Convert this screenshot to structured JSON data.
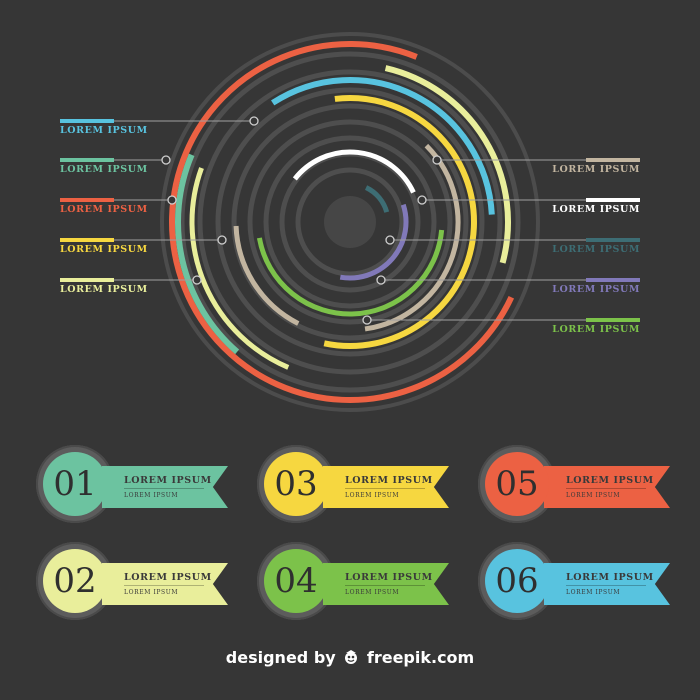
{
  "colors": {
    "background": "#363636",
    "teal": "#6cc3a0",
    "red": "#ec6143",
    "yellow": "#f6d740",
    "pale_yellow": "#e9ee9b",
    "green": "#7cc24a",
    "blue": "#58c3df",
    "beige": "#c2b5a0",
    "white": "#ffffff",
    "dark_teal": "#3d6d74",
    "purple": "#8179b9",
    "guide": "#a0a0a0"
  },
  "left_labels": [
    {
      "text": "LOREM IPSUM",
      "color": "#58c3df"
    },
    {
      "text": "LOREM IPSUM",
      "color": "#6cc3a0"
    },
    {
      "text": "LOREM IPSUM",
      "color": "#ec6143"
    },
    {
      "text": "LOREM IPSUM",
      "color": "#f6d740"
    },
    {
      "text": "LOREM IPSUM",
      "color": "#e9ee9b"
    }
  ],
  "right_labels": [
    {
      "text": "LOREM IPSUM",
      "color": "#c2b5a0"
    },
    {
      "text": "LOREM IPSUM",
      "color": "#ffffff"
    },
    {
      "text": "LOREM IPSUM",
      "color": "#3d6d74"
    },
    {
      "text": "LOREM IPSUM",
      "color": "#8179b9"
    },
    {
      "text": "LOREM IPSUM",
      "color": "#7cc24a"
    }
  ],
  "badges": [
    {
      "number": "01",
      "title": "LOREM IPSUM",
      "subtitle": "LOREM IPSUM",
      "color": "#6cc3a0"
    },
    {
      "number": "02",
      "title": "LOREM IPSUM",
      "subtitle": "LOREM IPSUM",
      "color": "#e9ee9b"
    },
    {
      "number": "03",
      "title": "LOREM IPSUM",
      "subtitle": "LOREM IPSUM",
      "color": "#f6d740"
    },
    {
      "number": "04",
      "title": "LOREM IPSUM",
      "subtitle": "LOREM IPSUM",
      "color": "#7cc24a"
    },
    {
      "number": "05",
      "title": "LOREM IPSUM",
      "subtitle": "LOREM IPSUM",
      "color": "#ec6143"
    },
    {
      "number": "06",
      "title": "LOREM IPSUM",
      "subtitle": "LOREM IPSUM",
      "color": "#58c3df"
    }
  ],
  "credit": {
    "prefix": "designed by",
    "brand": "freepik.com"
  }
}
